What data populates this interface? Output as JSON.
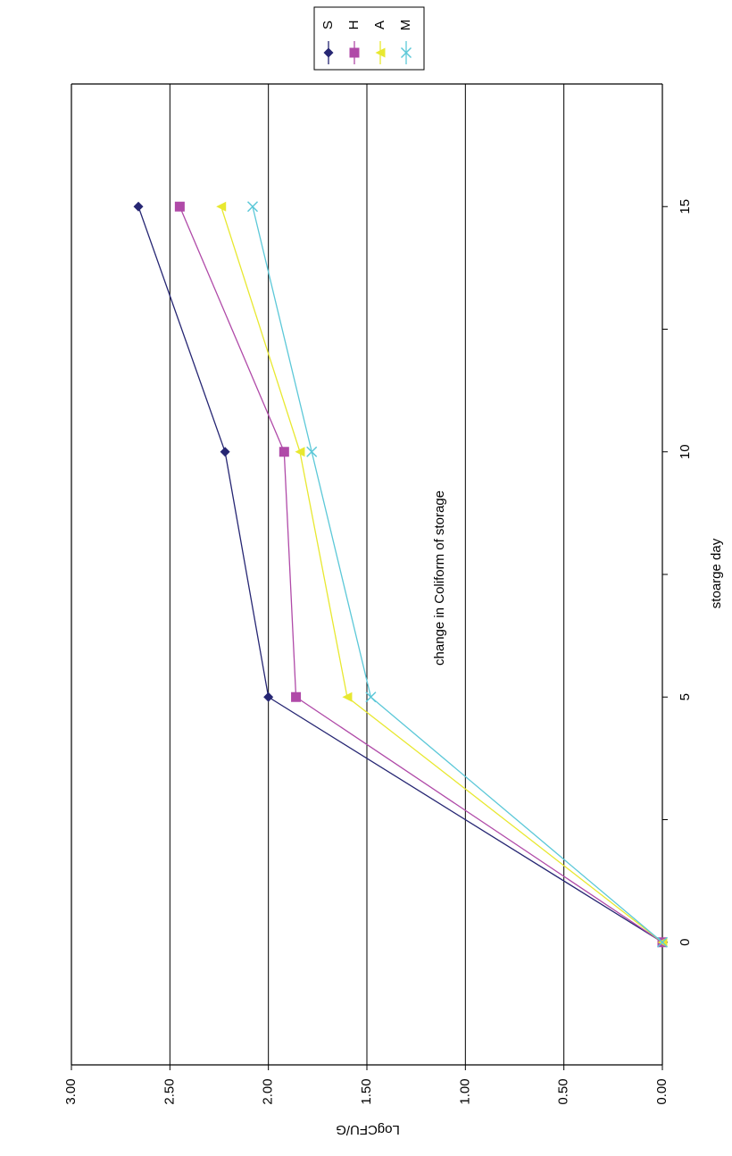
{
  "chart_data": {
    "type": "line",
    "orientation": "rotated-90-clockwise",
    "title": "change in Coliform of storage",
    "xlabel": "stoarge day",
    "ylabel": "LogCFU/G",
    "x": [
      0,
      5,
      10,
      15
    ],
    "x_ticks": [
      "0",
      "5",
      "10",
      "15"
    ],
    "xlim": [
      -2.5,
      17.5
    ],
    "ylim": [
      0,
      3
    ],
    "y_ticks": [
      "0.00",
      "0.50",
      "1.00",
      "1.50",
      "2.00",
      "2.50",
      "3.00"
    ],
    "grid": true,
    "legend_position": "top-right",
    "series": [
      {
        "name": "S",
        "values": [
          0.0,
          2.0,
          2.22,
          2.66
        ],
        "color": "#262673",
        "marker": "diamond"
      },
      {
        "name": "H",
        "values": [
          0.0,
          1.86,
          1.92,
          2.45
        ],
        "color": "#b04aa8",
        "marker": "square"
      },
      {
        "name": "A",
        "values": [
          0.0,
          1.6,
          1.84,
          2.24
        ],
        "color": "#e8e830",
        "marker": "triangle"
      },
      {
        "name": "M",
        "values": [
          0.0,
          1.48,
          1.78,
          2.08
        ],
        "color": "#5cc8d8",
        "marker": "x"
      }
    ]
  }
}
